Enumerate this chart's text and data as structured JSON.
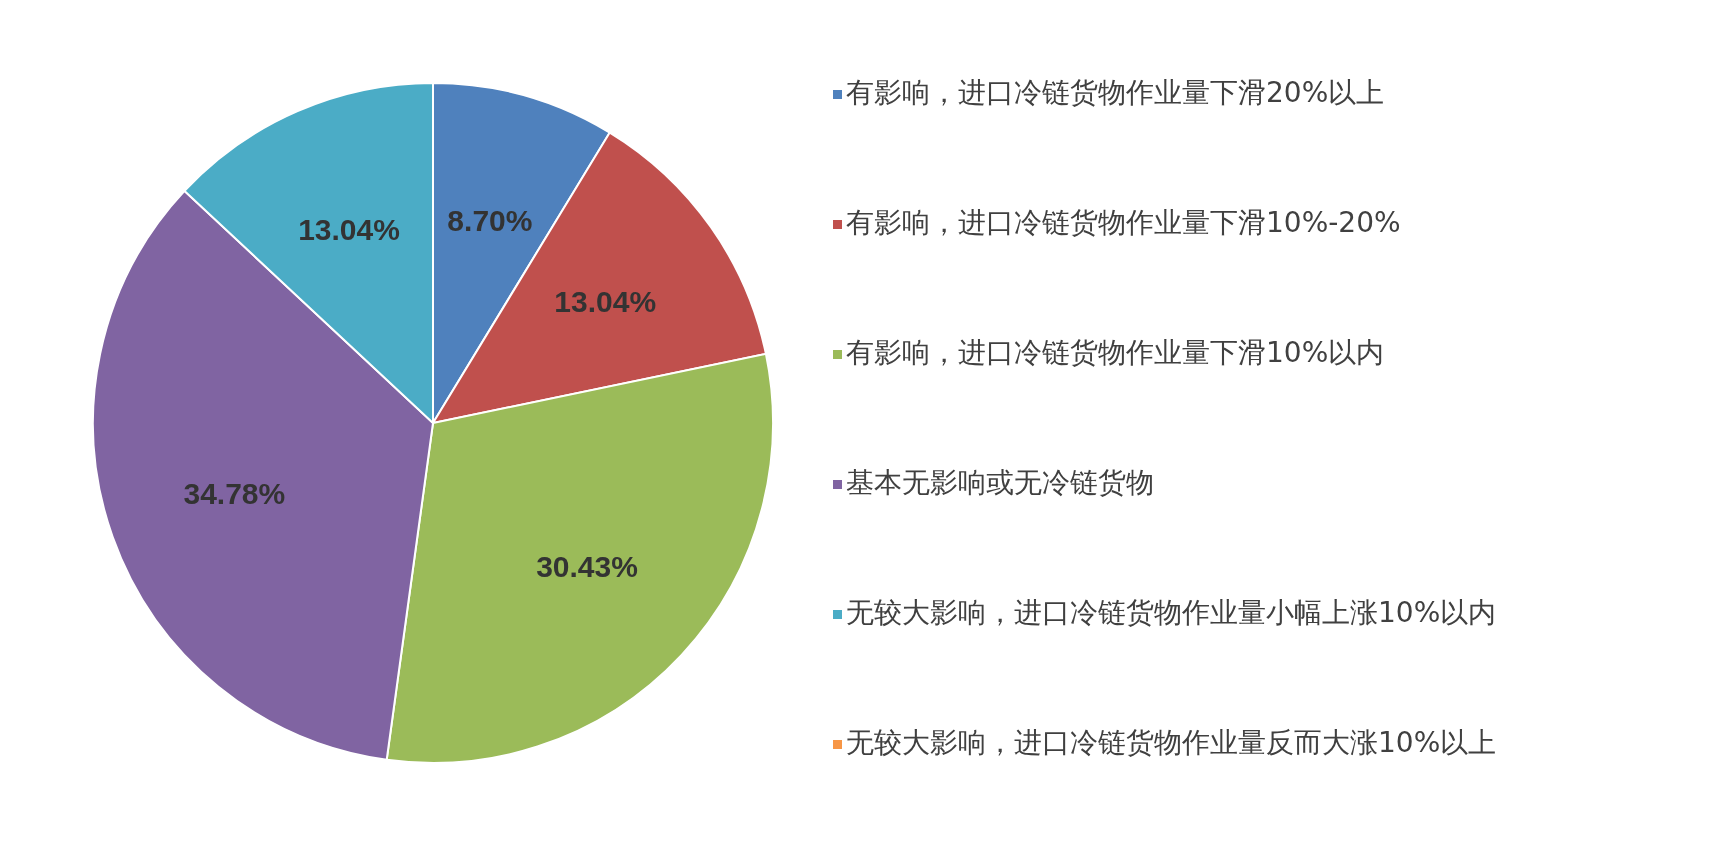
{
  "chart_data": {
    "type": "pie",
    "categories": [
      "有影响，进口冷链货物作业量下滑20%以上",
      "有影响，进口冷链货物作业量下滑10%-20%",
      "有影响，进口冷链货物作业量下滑10%以内",
      "基本无影响或无冷链货物",
      "无较大影响，进口冷链货物作业量小幅上涨10%以内",
      "无较大影响，进口冷链货物作业量反而大涨10%以上"
    ],
    "values": [
      8.7,
      13.04,
      30.43,
      34.78,
      13.04,
      0
    ],
    "colors": [
      "#4f81bd",
      "#c0504d",
      "#9bbb59",
      "#8064a2",
      "#4bacc6",
      "#f79646"
    ],
    "value_labels": [
      "8.70%",
      "13.04%",
      "30.43%",
      "34.78%",
      "13.04%",
      null
    ],
    "legend": "right"
  }
}
